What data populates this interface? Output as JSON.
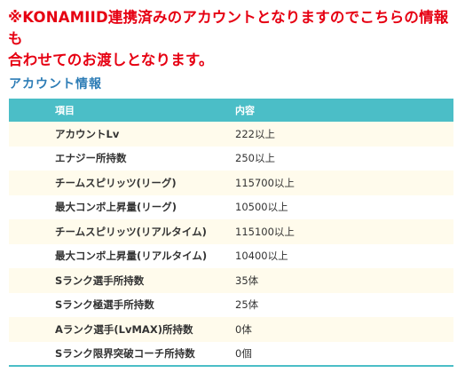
{
  "notice": {
    "line1": "※KONAMIID連携済みのアカウントとなりますのでこちらの情報も",
    "line2": "合わせてのお渡しとなります。"
  },
  "section": {
    "title": "アカウント情報"
  },
  "table": {
    "headers": [
      "項目",
      "内容"
    ],
    "rows": [
      {
        "item": "アカウントLv",
        "value": "222以上"
      },
      {
        "item": "エナジー所持数",
        "value": "250以上"
      },
      {
        "item": "チームスピリッツ(リーグ)",
        "value": "115700以上"
      },
      {
        "item": "最大コンボ上昇量(リーグ)",
        "value": "10500以上"
      },
      {
        "item": "チームスピリッツ(リアルタイム)",
        "value": "115100以上"
      },
      {
        "item": "最大コンボ上昇量(リアルタイム)",
        "value": "10400以上"
      },
      {
        "item": "Sランク選手所持数",
        "value": "35体"
      },
      {
        "item": "Sランク極選手所持数",
        "value": "25体"
      },
      {
        "item": "Aランク選手(LvMAX)所持数",
        "value": "0体"
      },
      {
        "item": "Sランク限界突破コーチ所持数",
        "value": "0個"
      }
    ]
  },
  "colors": {
    "notice": "#e60012",
    "section_title": "#2e7db6",
    "table_header_bg": "#4bbec7",
    "row_alt_bg": "#fffbec"
  }
}
